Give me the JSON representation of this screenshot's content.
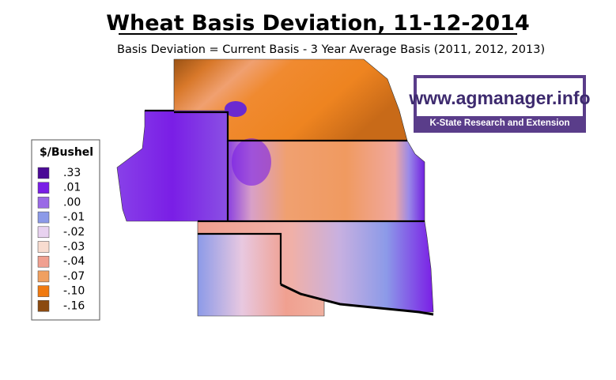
{
  "header": {
    "title": "Wheat Basis Deviation, 11-12-2014",
    "subtitle": "Basis Deviation = Current Basis - 3 Year Average Basis (2011, 2012, 2013)"
  },
  "logo": {
    "url": "www.agmanager.info",
    "org": "K-State Research and Extension"
  },
  "legend": {
    "title": "$/Bushel",
    "items": [
      {
        "label": ".33",
        "color": "#4b0a96"
      },
      {
        "label": ".01",
        "color": "#7a1ee6"
      },
      {
        "label": ".00",
        "color": "#9a6ae6"
      },
      {
        "label": "-.01",
        "color": "#8c9ae8"
      },
      {
        "label": "-.02",
        "color": "#e8d2f0"
      },
      {
        "label": "-.03",
        "color": "#f8dcd0"
      },
      {
        "label": "-.04",
        "color": "#f0a090"
      },
      {
        "label": "-.07",
        "color": "#f0a060"
      },
      {
        "label": "-.10",
        "color": "#f07a10"
      },
      {
        "label": "-.16",
        "color": "#8b4a10"
      }
    ]
  }
}
